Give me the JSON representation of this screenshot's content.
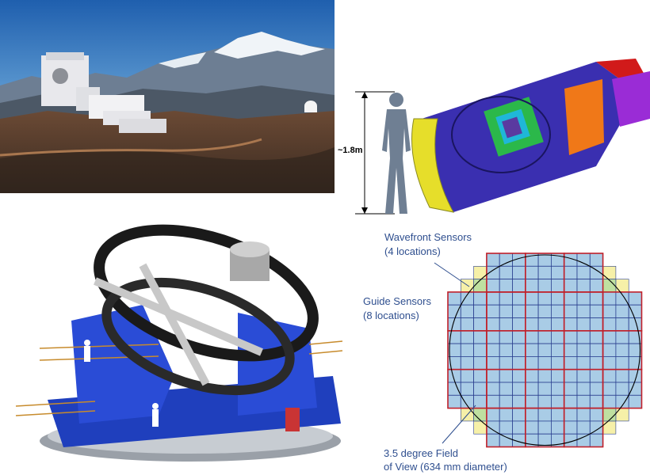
{
  "camera": {
    "height_label": "~1.8m"
  },
  "focal_plane": {
    "wavefront": {
      "title": "Wavefront Sensors",
      "detail": "(4 locations)"
    },
    "guide": {
      "title": "Guide Sensors",
      "detail": "(8 locations)"
    },
    "fov": {
      "title": "3.5 degree Field",
      "detail": "of View (634 mm diameter)"
    },
    "colors": {
      "raft_border": "#c0202a",
      "ccd_cell": "#a9cce6",
      "ccd_line": "#2a3f8f",
      "guide_sensor": "#f6f0a8",
      "wavefront_sensor": "#bfe0a0",
      "circle": "#000000"
    }
  }
}
